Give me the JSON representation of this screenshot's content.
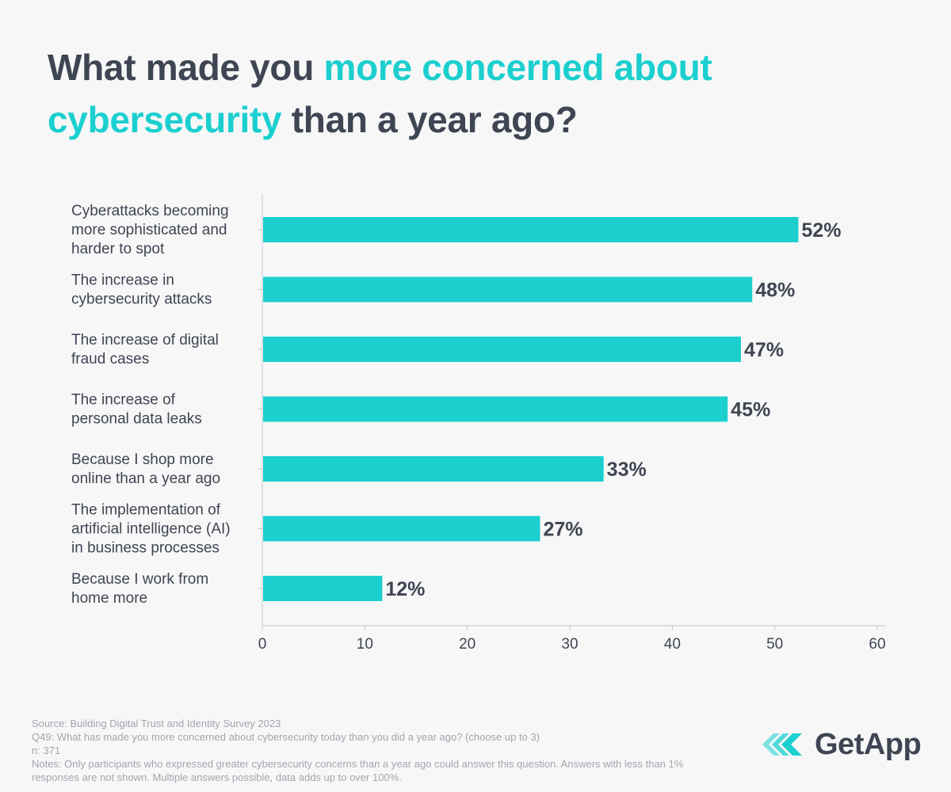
{
  "title": {
    "part1": "What made you ",
    "highlight": "more concerned about cybersecurity",
    "part2": " than a year ago?"
  },
  "colors": {
    "accent": "#1ccfcf",
    "text": "#3f4552",
    "muted": "#a2a6ad",
    "axis": "#c4c7cc"
  },
  "chart_data": {
    "type": "bar",
    "orientation": "horizontal",
    "categories": [
      "Cyberattacks becoming more sophisticated and harder to spot",
      "The increase in cybersecurity attacks",
      "The increase of digital fraud cases",
      "The increase of personal data leaks",
      "Because I shop more online than a year ago",
      "The implementation of artificial intelligence (AI) in business processes",
      "Because I work from home more"
    ],
    "category_lines": [
      [
        "Cyberattacks becoming",
        "more sophisticated and",
        "harder to spot"
      ],
      [
        "The increase in",
        "cybersecurity attacks"
      ],
      [
        "The increase of digital",
        "fraud cases"
      ],
      [
        "The increase of",
        "personal data leaks"
      ],
      [
        "Because I shop more",
        "online than a year ago"
      ],
      [
        "The implementation of",
        "artificial intelligence (AI)",
        "in business processes"
      ],
      [
        "Because I work from",
        "home more"
      ]
    ],
    "values": [
      52.3,
      47.8,
      46.7,
      45.4,
      33.3,
      27.1,
      11.7
    ],
    "data_labels": [
      "52%",
      "48%",
      "47%",
      "45%",
      "33%",
      "27%",
      "12%"
    ],
    "xlim": [
      0,
      60
    ],
    "xticks": [
      0,
      10,
      20,
      30,
      40,
      50,
      60
    ],
    "xtick_labels": [
      "0",
      "10",
      "20",
      "30",
      "40",
      "50",
      "60"
    ],
    "title": "What made you more concerned about cybersecurity than a year ago?",
    "xlabel": "",
    "ylabel": "",
    "grid": false
  },
  "footer": {
    "source": "Source: Building Digital Trust and Identity Survey 2023",
    "question": "Q49: What has made you more concerned about cybersecurity today than you did a year ago? (choose up to 3)",
    "n": "n: 371",
    "notes": "Notes: Only participants who expressed greater cybersecurity concerns than a year ago could answer this question. Answers with less than 1% responses are not shown. Multiple answers possible, data adds up to over 100%."
  },
  "logo": {
    "text": "GetApp",
    "icon": "getapp-chevrons-icon"
  }
}
